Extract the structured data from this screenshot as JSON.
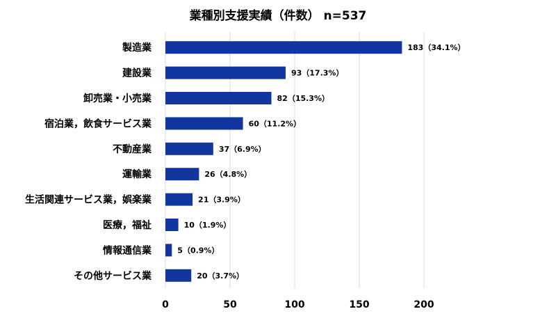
{
  "chart_data": {
    "type": "bar",
    "orientation": "horizontal",
    "title": "業種別支援実績（件数） n=537",
    "xlabel": "",
    "ylabel": "",
    "xlim": [
      0,
      200
    ],
    "x_ticks": [
      0,
      50,
      100,
      150,
      200
    ],
    "grid": true,
    "categories": [
      "製造業",
      "建設業",
      "卸売業・小売業",
      "宿泊業，飲食サービス業",
      "不動産業",
      "運輸業",
      "生活関連サービス業，娯楽業",
      "医療，福祉",
      "情報通信業",
      "その他サービス業"
    ],
    "values": [
      183,
      93,
      82,
      60,
      37,
      26,
      21,
      10,
      5,
      20
    ],
    "data_labels": [
      "183（34.1%）",
      "93（17.3%）",
      "82（15.3%）",
      "60（11.2%）",
      "37（6.9%）",
      "26（4.8%）",
      "21（3.9%）",
      "10（1.9%）",
      "5（0.9%）",
      "20（3.7%）"
    ],
    "bar_color": "#1236A0",
    "grid_color": "#D9D9D9"
  }
}
